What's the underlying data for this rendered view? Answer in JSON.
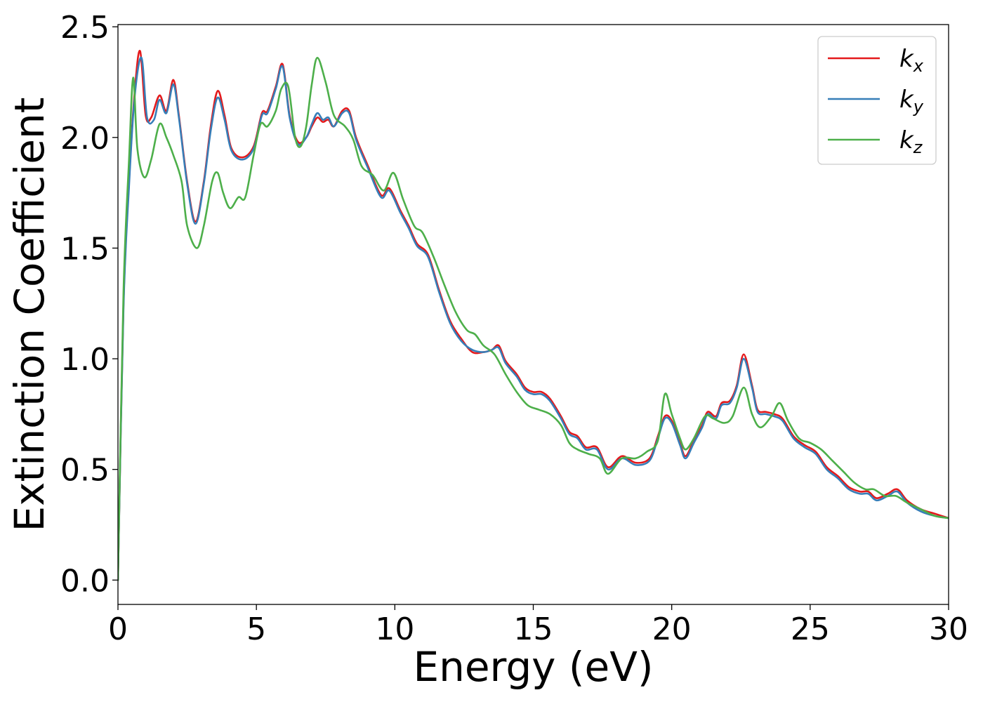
{
  "chart_data": {
    "type": "line",
    "title": "",
    "xlabel": "Energy (eV)",
    "ylabel": "Extinction Coefficient",
    "xlim": [
      0,
      30
    ],
    "ylim": [
      -0.11,
      2.51
    ],
    "xticks": [
      0,
      5,
      10,
      15,
      20,
      25,
      30
    ],
    "xtick_labels": [
      "0",
      "5",
      "10",
      "15",
      "20",
      "25",
      "30"
    ],
    "yticks": [
      0.0,
      0.5,
      1.0,
      1.5,
      2.0,
      2.5
    ],
    "ytick_labels": [
      "0.0",
      "0.5",
      "1.0",
      "1.5",
      "2.0",
      "2.5"
    ],
    "grid": false,
    "legend_position": "top-right",
    "series": [
      {
        "name": "k",
        "subscript": "x",
        "color": "#e41a1c",
        "points": [
          [
            0,
            0.0
          ],
          [
            0.2,
            1.25
          ],
          [
            0.4,
            1.8
          ],
          [
            0.6,
            2.2
          ],
          [
            0.8,
            2.39
          ],
          [
            1.0,
            2.1
          ],
          [
            1.2,
            2.09
          ],
          [
            1.5,
            2.19
          ],
          [
            1.75,
            2.12
          ],
          [
            2.0,
            2.26
          ],
          [
            2.2,
            2.1
          ],
          [
            2.5,
            1.8
          ],
          [
            2.8,
            1.62
          ],
          [
            3.1,
            1.8
          ],
          [
            3.35,
            2.05
          ],
          [
            3.6,
            2.21
          ],
          [
            3.85,
            2.1
          ],
          [
            4.1,
            1.95
          ],
          [
            4.5,
            1.91
          ],
          [
            4.9,
            1.96
          ],
          [
            5.2,
            2.11
          ],
          [
            5.4,
            2.12
          ],
          [
            5.7,
            2.23
          ],
          [
            5.95,
            2.33
          ],
          [
            6.2,
            2.1
          ],
          [
            6.5,
            1.98
          ],
          [
            6.8,
            2.0
          ],
          [
            7.0,
            2.05
          ],
          [
            7.2,
            2.09
          ],
          [
            7.4,
            2.07
          ],
          [
            7.6,
            2.08
          ],
          [
            7.8,
            2.05
          ],
          [
            8.1,
            2.12
          ],
          [
            8.35,
            2.12
          ],
          [
            8.6,
            2.0
          ],
          [
            9.0,
            1.88
          ],
          [
            9.5,
            1.74
          ],
          [
            9.8,
            1.77
          ],
          [
            10.2,
            1.67
          ],
          [
            10.5,
            1.6
          ],
          [
            10.8,
            1.52
          ],
          [
            11.2,
            1.47
          ],
          [
            11.6,
            1.31
          ],
          [
            12.0,
            1.17
          ],
          [
            12.4,
            1.09
          ],
          [
            12.8,
            1.03
          ],
          [
            13.2,
            1.03
          ],
          [
            13.5,
            1.04
          ],
          [
            13.75,
            1.06
          ],
          [
            14.0,
            0.99
          ],
          [
            14.4,
            0.93
          ],
          [
            14.7,
            0.87
          ],
          [
            15.0,
            0.85
          ],
          [
            15.3,
            0.85
          ],
          [
            15.6,
            0.82
          ],
          [
            16.0,
            0.74
          ],
          [
            16.3,
            0.67
          ],
          [
            16.6,
            0.65
          ],
          [
            16.9,
            0.6
          ],
          [
            17.3,
            0.6
          ],
          [
            17.7,
            0.51
          ],
          [
            18.2,
            0.56
          ],
          [
            18.7,
            0.53
          ],
          [
            19.2,
            0.55
          ],
          [
            19.5,
            0.65
          ],
          [
            19.75,
            0.74
          ],
          [
            20.0,
            0.72
          ],
          [
            20.3,
            0.62
          ],
          [
            20.5,
            0.56
          ],
          [
            20.8,
            0.63
          ],
          [
            21.1,
            0.7
          ],
          [
            21.3,
            0.76
          ],
          [
            21.6,
            0.74
          ],
          [
            21.8,
            0.8
          ],
          [
            22.1,
            0.81
          ],
          [
            22.35,
            0.88
          ],
          [
            22.6,
            1.02
          ],
          [
            22.9,
            0.88
          ],
          [
            23.1,
            0.77
          ],
          [
            23.4,
            0.76
          ],
          [
            23.7,
            0.75
          ],
          [
            24.0,
            0.73
          ],
          [
            24.4,
            0.65
          ],
          [
            24.8,
            0.61
          ],
          [
            25.2,
            0.58
          ],
          [
            25.6,
            0.51
          ],
          [
            26.0,
            0.47
          ],
          [
            26.4,
            0.42
          ],
          [
            26.8,
            0.4
          ],
          [
            27.1,
            0.4
          ],
          [
            27.4,
            0.37
          ],
          [
            27.8,
            0.39
          ],
          [
            28.15,
            0.41
          ],
          [
            28.5,
            0.36
          ],
          [
            29.0,
            0.32
          ],
          [
            29.5,
            0.3
          ],
          [
            30.0,
            0.28
          ]
        ]
      },
      {
        "name": "k",
        "subscript": "y",
        "color": "#377eb8",
        "points": [
          [
            0,
            0.0
          ],
          [
            0.2,
            1.23
          ],
          [
            0.4,
            1.78
          ],
          [
            0.6,
            2.18
          ],
          [
            0.85,
            2.36
          ],
          [
            1.05,
            2.09
          ],
          [
            1.3,
            2.08
          ],
          [
            1.5,
            2.17
          ],
          [
            1.75,
            2.11
          ],
          [
            2.0,
            2.24
          ],
          [
            2.2,
            2.09
          ],
          [
            2.5,
            1.79
          ],
          [
            2.8,
            1.61
          ],
          [
            3.1,
            1.79
          ],
          [
            3.35,
            2.03
          ],
          [
            3.6,
            2.18
          ],
          [
            3.85,
            2.08
          ],
          [
            4.1,
            1.94
          ],
          [
            4.5,
            1.9
          ],
          [
            4.9,
            1.95
          ],
          [
            5.2,
            2.1
          ],
          [
            5.4,
            2.11
          ],
          [
            5.7,
            2.22
          ],
          [
            5.95,
            2.32
          ],
          [
            6.2,
            2.09
          ],
          [
            6.5,
            1.97
          ],
          [
            6.8,
            2.0
          ],
          [
            7.0,
            2.06
          ],
          [
            7.2,
            2.11
          ],
          [
            7.4,
            2.08
          ],
          [
            7.6,
            2.09
          ],
          [
            7.8,
            2.05
          ],
          [
            8.1,
            2.11
          ],
          [
            8.35,
            2.11
          ],
          [
            8.6,
            1.99
          ],
          [
            9.0,
            1.87
          ],
          [
            9.5,
            1.73
          ],
          [
            9.8,
            1.76
          ],
          [
            10.2,
            1.66
          ],
          [
            10.5,
            1.59
          ],
          [
            10.8,
            1.51
          ],
          [
            11.2,
            1.46
          ],
          [
            11.6,
            1.3
          ],
          [
            12.0,
            1.16
          ],
          [
            12.4,
            1.08
          ],
          [
            12.8,
            1.04
          ],
          [
            13.2,
            1.03
          ],
          [
            13.5,
            1.04
          ],
          [
            13.75,
            1.05
          ],
          [
            14.0,
            0.98
          ],
          [
            14.4,
            0.92
          ],
          [
            14.7,
            0.86
          ],
          [
            15.0,
            0.84
          ],
          [
            15.3,
            0.84
          ],
          [
            15.6,
            0.81
          ],
          [
            16.0,
            0.73
          ],
          [
            16.3,
            0.66
          ],
          [
            16.6,
            0.64
          ],
          [
            16.9,
            0.59
          ],
          [
            17.3,
            0.59
          ],
          [
            17.7,
            0.5
          ],
          [
            18.2,
            0.55
          ],
          [
            18.7,
            0.52
          ],
          [
            19.2,
            0.54
          ],
          [
            19.5,
            0.64
          ],
          [
            19.75,
            0.73
          ],
          [
            20.0,
            0.71
          ],
          [
            20.3,
            0.61
          ],
          [
            20.5,
            0.55
          ],
          [
            20.8,
            0.62
          ],
          [
            21.1,
            0.69
          ],
          [
            21.3,
            0.75
          ],
          [
            21.6,
            0.73
          ],
          [
            21.8,
            0.79
          ],
          [
            22.1,
            0.8
          ],
          [
            22.35,
            0.87
          ],
          [
            22.6,
            1.0
          ],
          [
            22.9,
            0.87
          ],
          [
            23.1,
            0.76
          ],
          [
            23.4,
            0.75
          ],
          [
            23.7,
            0.74
          ],
          [
            24.0,
            0.72
          ],
          [
            24.4,
            0.64
          ],
          [
            24.8,
            0.6
          ],
          [
            25.2,
            0.57
          ],
          [
            25.6,
            0.5
          ],
          [
            26.0,
            0.46
          ],
          [
            26.4,
            0.41
          ],
          [
            26.8,
            0.39
          ],
          [
            27.1,
            0.39
          ],
          [
            27.4,
            0.36
          ],
          [
            27.8,
            0.38
          ],
          [
            28.15,
            0.4
          ],
          [
            28.5,
            0.35
          ],
          [
            29.0,
            0.31
          ],
          [
            29.5,
            0.29
          ],
          [
            30.0,
            0.28
          ]
        ]
      },
      {
        "name": "k",
        "subscript": "z",
        "color": "#4daf4a",
        "points": [
          [
            0,
            0.0
          ],
          [
            0.2,
            1.3
          ],
          [
            0.4,
            1.9
          ],
          [
            0.55,
            2.27
          ],
          [
            0.7,
            1.95
          ],
          [
            0.95,
            1.82
          ],
          [
            1.2,
            1.9
          ],
          [
            1.5,
            2.06
          ],
          [
            1.75,
            2.0
          ],
          [
            2.0,
            1.92
          ],
          [
            2.3,
            1.8
          ],
          [
            2.5,
            1.6
          ],
          [
            2.85,
            1.5
          ],
          [
            3.1,
            1.6
          ],
          [
            3.4,
            1.8
          ],
          [
            3.6,
            1.84
          ],
          [
            3.8,
            1.75
          ],
          [
            4.05,
            1.68
          ],
          [
            4.35,
            1.73
          ],
          [
            4.6,
            1.73
          ],
          [
            4.9,
            1.92
          ],
          [
            5.15,
            2.06
          ],
          [
            5.4,
            2.05
          ],
          [
            5.7,
            2.12
          ],
          [
            5.9,
            2.22
          ],
          [
            6.15,
            2.23
          ],
          [
            6.4,
            2.0
          ],
          [
            6.6,
            1.96
          ],
          [
            6.8,
            2.05
          ],
          [
            7.0,
            2.24
          ],
          [
            7.2,
            2.36
          ],
          [
            7.5,
            2.25
          ],
          [
            7.8,
            2.1
          ],
          [
            8.2,
            2.05
          ],
          [
            8.5,
            1.99
          ],
          [
            8.8,
            1.87
          ],
          [
            9.2,
            1.83
          ],
          [
            9.6,
            1.76
          ],
          [
            9.95,
            1.84
          ],
          [
            10.3,
            1.72
          ],
          [
            10.7,
            1.6
          ],
          [
            11.0,
            1.57
          ],
          [
            11.4,
            1.46
          ],
          [
            11.8,
            1.33
          ],
          [
            12.2,
            1.21
          ],
          [
            12.6,
            1.13
          ],
          [
            12.9,
            1.11
          ],
          [
            13.2,
            1.06
          ],
          [
            13.6,
            1.02
          ],
          [
            14.0,
            0.93
          ],
          [
            14.4,
            0.85
          ],
          [
            14.8,
            0.79
          ],
          [
            15.2,
            0.77
          ],
          [
            15.6,
            0.75
          ],
          [
            16.0,
            0.7
          ],
          [
            16.3,
            0.62
          ],
          [
            16.6,
            0.59
          ],
          [
            17.0,
            0.57
          ],
          [
            17.4,
            0.55
          ],
          [
            17.7,
            0.48
          ],
          [
            18.2,
            0.55
          ],
          [
            18.7,
            0.55
          ],
          [
            19.1,
            0.58
          ],
          [
            19.5,
            0.63
          ],
          [
            19.75,
            0.84
          ],
          [
            20.0,
            0.75
          ],
          [
            20.3,
            0.64
          ],
          [
            20.5,
            0.59
          ],
          [
            20.8,
            0.64
          ],
          [
            21.2,
            0.74
          ],
          [
            21.5,
            0.73
          ],
          [
            21.9,
            0.71
          ],
          [
            22.2,
            0.74
          ],
          [
            22.6,
            0.87
          ],
          [
            22.9,
            0.75
          ],
          [
            23.2,
            0.69
          ],
          [
            23.6,
            0.74
          ],
          [
            23.9,
            0.8
          ],
          [
            24.2,
            0.72
          ],
          [
            24.6,
            0.64
          ],
          [
            25.0,
            0.62
          ],
          [
            25.4,
            0.59
          ],
          [
            25.8,
            0.54
          ],
          [
            26.2,
            0.49
          ],
          [
            26.6,
            0.44
          ],
          [
            27.0,
            0.41
          ],
          [
            27.3,
            0.41
          ],
          [
            27.7,
            0.38
          ],
          [
            28.1,
            0.38
          ],
          [
            28.5,
            0.35
          ],
          [
            29.0,
            0.32
          ],
          [
            29.5,
            0.29
          ],
          [
            30.0,
            0.28
          ]
        ]
      }
    ]
  }
}
